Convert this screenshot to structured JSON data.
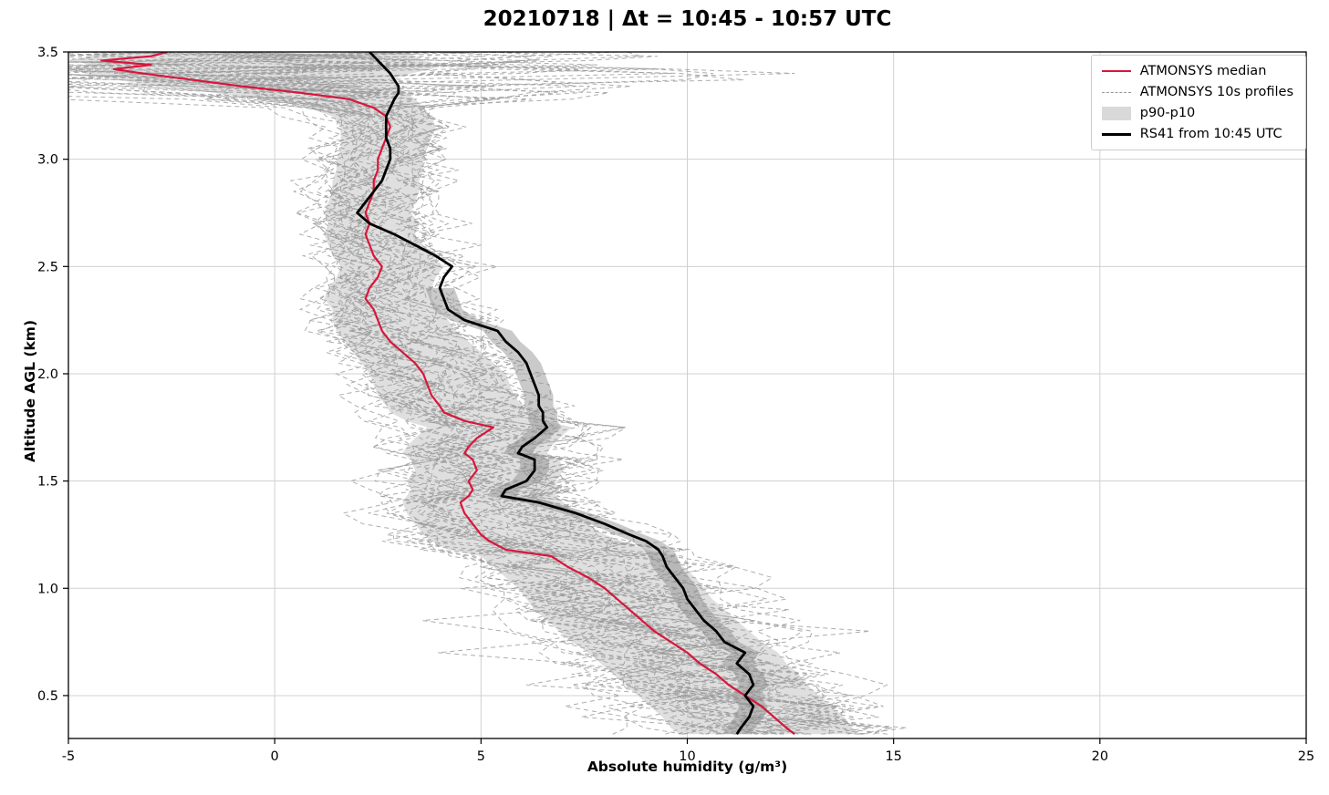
{
  "chart_data": {
    "type": "line",
    "title": "20210718 | Δt = 10:45 - 10:57 UTC",
    "xlabel": "Absolute humidity (g/m³)",
    "ylabel": "Altitude AGL (km)",
    "xlim": [
      -5,
      25
    ],
    "ylim": [
      0.3,
      3.5
    ],
    "x_ticks": [
      -5,
      0,
      5,
      10,
      15,
      20,
      25
    ],
    "y_ticks": [
      0.5,
      1.0,
      1.5,
      2.0,
      2.5,
      3.0,
      3.5
    ],
    "grid": true,
    "legend_position": "upper right",
    "altitudes": [
      0.32,
      0.35,
      0.4,
      0.45,
      0.5,
      0.55,
      0.6,
      0.65,
      0.7,
      0.75,
      0.8,
      0.85,
      0.9,
      0.95,
      1.0,
      1.05,
      1.1,
      1.15,
      1.18,
      1.22,
      1.25,
      1.3,
      1.35,
      1.4,
      1.43,
      1.46,
      1.5,
      1.55,
      1.6,
      1.63,
      1.66,
      1.7,
      1.75,
      1.78,
      1.82,
      1.85,
      1.9,
      1.95,
      2.0,
      2.05,
      2.1,
      2.15,
      2.2,
      2.25,
      2.3,
      2.35,
      2.4,
      2.45,
      2.5,
      2.55,
      2.6,
      2.65,
      2.7,
      2.75,
      2.8,
      2.85,
      2.9,
      2.95,
      3.0,
      3.05,
      3.1,
      3.15,
      3.2,
      3.24,
      3.28,
      3.31,
      3.34,
      3.37,
      3.4,
      3.42,
      3.44,
      3.46,
      3.48,
      3.5
    ],
    "series": [
      {
        "name": "ATMONSYS median",
        "color": "#d8163c",
        "width": 2.2,
        "values": [
          12.6,
          12.4,
          12.1,
          11.8,
          11.4,
          11.0,
          10.7,
          10.3,
          10.0,
          9.6,
          9.2,
          8.9,
          8.6,
          8.3,
          8.0,
          7.6,
          7.1,
          6.7,
          5.6,
          5.2,
          5.0,
          4.8,
          4.6,
          4.5,
          4.7,
          4.8,
          4.7,
          4.9,
          4.8,
          4.6,
          4.7,
          4.9,
          5.3,
          4.6,
          4.1,
          4.0,
          3.8,
          3.7,
          3.6,
          3.4,
          3.1,
          2.8,
          2.6,
          2.5,
          2.4,
          2.2,
          2.3,
          2.5,
          2.6,
          2.4,
          2.3,
          2.2,
          2.3,
          2.2,
          2.3,
          2.4,
          2.4,
          2.5,
          2.5,
          2.6,
          2.7,
          2.8,
          2.7,
          2.4,
          1.8,
          0.6,
          -0.8,
          -2.0,
          -3.2,
          -3.9,
          -3.0,
          -4.2,
          -3.0,
          -2.6
        ]
      },
      {
        "name": "RS41 from 10:45 UTC",
        "color": "#000000",
        "width": 2.8,
        "values": [
          11.2,
          11.3,
          11.5,
          11.6,
          11.4,
          11.6,
          11.5,
          11.2,
          11.4,
          10.9,
          10.7,
          10.4,
          10.2,
          10.0,
          9.9,
          9.7,
          9.5,
          9.4,
          9.3,
          9.0,
          8.6,
          8.0,
          7.3,
          6.4,
          5.5,
          5.6,
          6.1,
          6.3,
          6.3,
          5.9,
          6.0,
          6.3,
          6.6,
          6.5,
          6.5,
          6.4,
          6.4,
          6.3,
          6.2,
          6.1,
          5.9,
          5.6,
          5.4,
          4.6,
          4.2,
          4.1,
          4.0,
          4.1,
          4.3,
          3.9,
          3.4,
          2.9,
          2.3,
          2.0,
          2.2,
          2.4,
          2.6,
          2.7,
          2.8,
          2.8,
          2.7,
          2.7,
          2.7,
          2.8,
          2.9,
          3.0,
          3.0,
          2.9,
          2.8,
          2.7,
          2.6,
          2.5,
          2.4,
          2.3
        ]
      }
    ],
    "band": {
      "name": "p90-p10",
      "color": "#d9d9d9",
      "p10": [
        9.8,
        9.6,
        9.4,
        9.1,
        8.8,
        8.5,
        8.2,
        7.9,
        7.6,
        7.2,
        6.9,
        6.6,
        6.3,
        6.1,
        5.9,
        5.6,
        5.3,
        5.0,
        4.2,
        3.8,
        3.6,
        3.4,
        3.2,
        3.1,
        3.2,
        3.3,
        3.2,
        3.4,
        3.3,
        3.1,
        3.2,
        3.4,
        3.7,
        3.2,
        2.8,
        2.7,
        2.5,
        2.4,
        2.3,
        2.1,
        1.9,
        1.7,
        1.5,
        1.4,
        1.4,
        1.2,
        1.3,
        1.5,
        1.6,
        1.4,
        1.3,
        1.2,
        1.3,
        1.2,
        1.3,
        1.4,
        1.4,
        1.5,
        1.5,
        1.6,
        1.6,
        1.6,
        1.4,
        0.8,
        -0.2,
        -1.5,
        -2.8,
        -3.8,
        -4.6,
        -4.9,
        -4.5,
        -4.9,
        -4.5,
        -4.2
      ],
      "p90": [
        14.2,
        14.0,
        13.8,
        13.5,
        13.2,
        12.9,
        12.7,
        12.4,
        12.2,
        11.8,
        11.5,
        11.2,
        10.9,
        10.6,
        10.4,
        10.2,
        9.9,
        9.7,
        9.0,
        8.4,
        8.0,
        7.6,
        7.3,
        7.0,
        6.8,
        6.9,
        6.8,
        7.0,
        6.9,
        6.6,
        6.7,
        6.9,
        7.2,
        6.6,
        6.2,
        6.0,
        5.8,
        5.7,
        5.6,
        5.3,
        5.0,
        4.7,
        4.4,
        4.2,
        4.0,
        3.8,
        3.8,
        3.9,
        4.1,
        3.8,
        3.6,
        3.4,
        3.5,
        3.3,
        3.4,
        3.5,
        3.5,
        3.6,
        3.6,
        3.7,
        3.8,
        3.9,
        3.8,
        3.6,
        3.4,
        3.2,
        3.0,
        2.8,
        3.3,
        3.8,
        4.0,
        3.6,
        3.4,
        3.2
      ]
    },
    "profiles": {
      "name": "ATMONSYS 10s profiles",
      "count": 38,
      "seed": 11,
      "color": "#999999",
      "style": "dashed"
    },
    "rs41_shading": {
      "alt_max": 2.4,
      "half_width": 0.35,
      "color": "#8a8a8a",
      "opacity": 0.45
    }
  },
  "legend": {
    "items": [
      {
        "label": "ATMONSYS median",
        "color": "#d8163c",
        "type": "line"
      },
      {
        "label": "ATMONSYS 10s profiles",
        "color": "#999999",
        "type": "dashed-line"
      },
      {
        "label": "p90-p10",
        "color": "#d9d9d9",
        "type": "patch"
      },
      {
        "label": "RS41 from 10:45 UTC",
        "color": "#000000",
        "type": "line"
      }
    ]
  }
}
